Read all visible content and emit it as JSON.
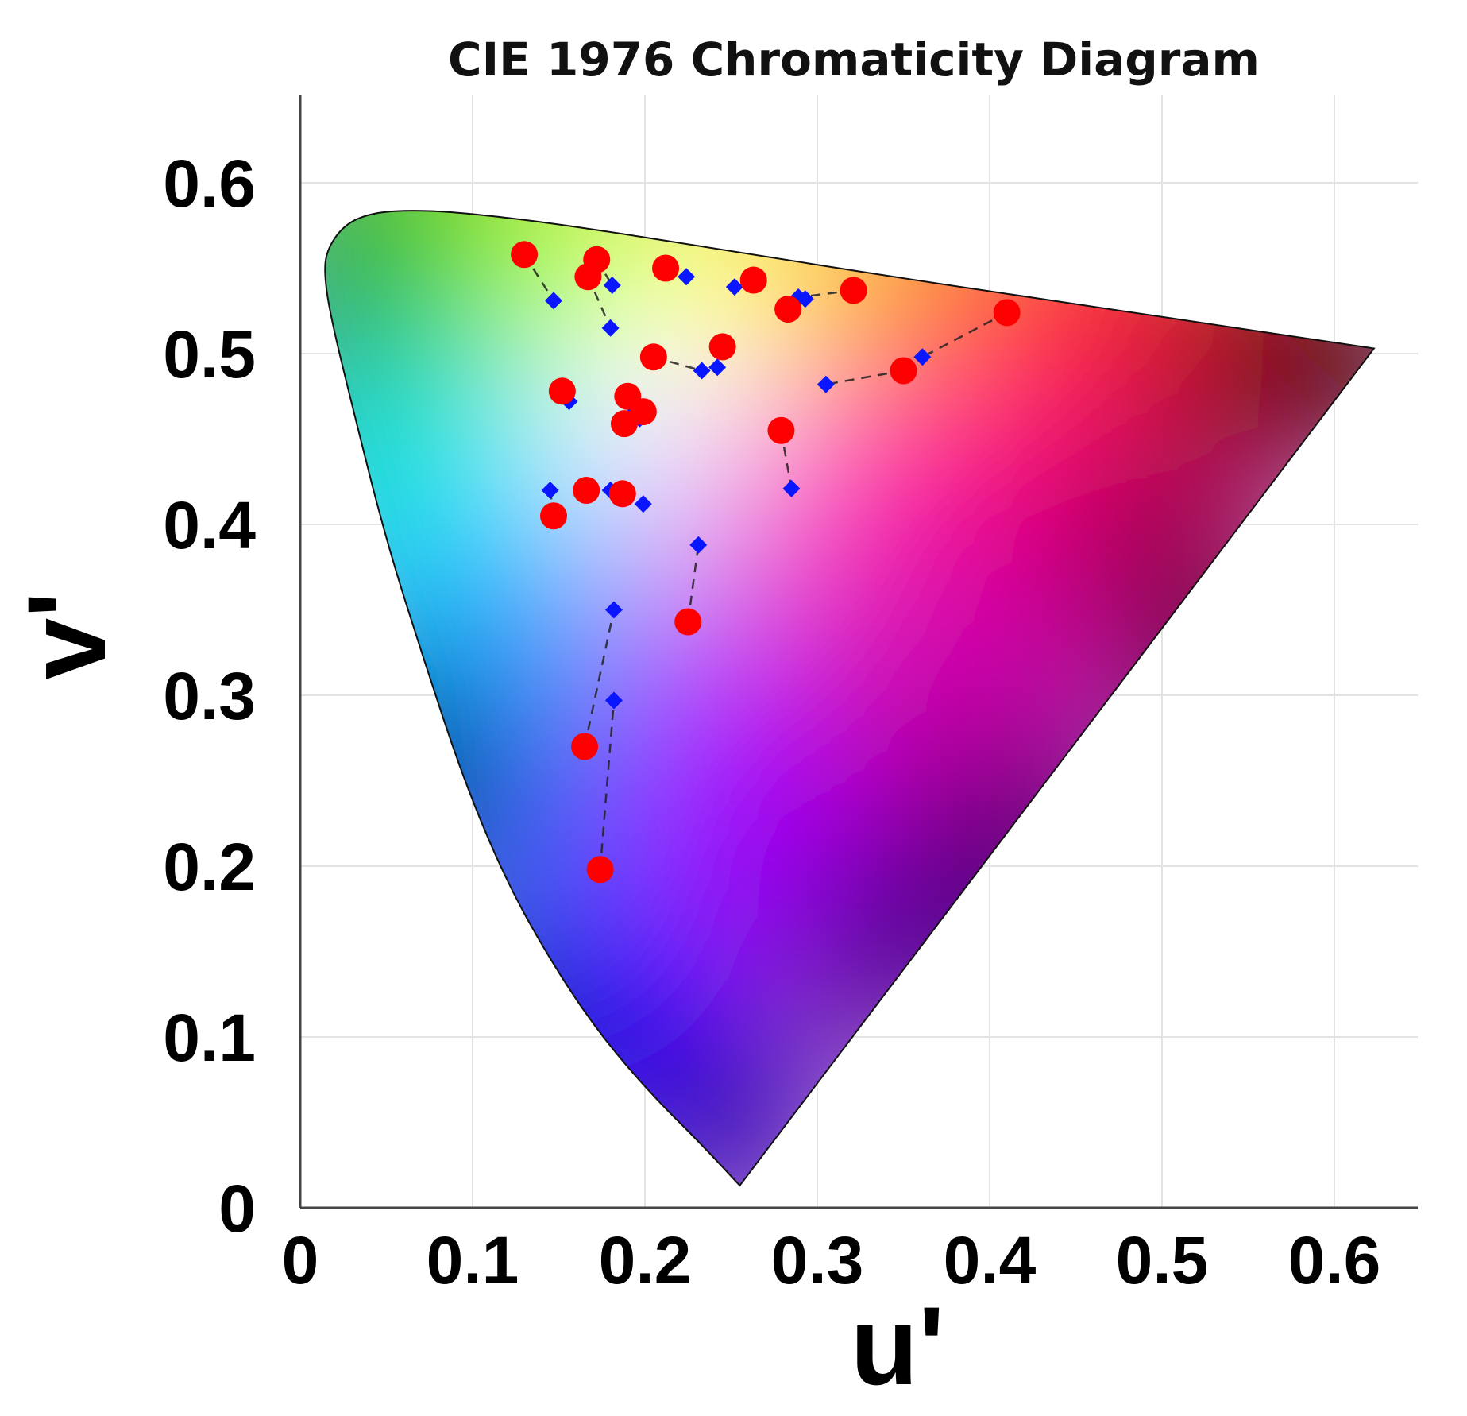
{
  "chart_data": {
    "type": "scatter",
    "title": "CIE 1976 Chromaticity Diagram",
    "xlabel": "u'",
    "ylabel": "v'",
    "xlim": [
      0,
      0.65
    ],
    "ylim": [
      0,
      0.65
    ],
    "xticks": [
      "0",
      "0.1",
      "0.2",
      "0.3",
      "0.4",
      "0.5",
      "0.6"
    ],
    "yticks": [
      "0",
      "0.1",
      "0.2",
      "0.3",
      "0.4",
      "0.5",
      "0.6"
    ],
    "grid": true,
    "legend": "none",
    "colors": {
      "red_marker": "#ff0000",
      "blue_marker": "#0a16ff",
      "connector": "#222222"
    },
    "locus": [
      [
        0.255,
        0.013
      ],
      [
        0.235,
        0.035
      ],
      [
        0.205,
        0.065
      ],
      [
        0.175,
        0.1
      ],
      [
        0.148,
        0.14
      ],
      [
        0.12,
        0.19
      ],
      [
        0.095,
        0.25
      ],
      [
        0.072,
        0.32
      ],
      [
        0.05,
        0.39
      ],
      [
        0.03,
        0.47
      ],
      [
        0.018,
        0.52
      ],
      [
        0.014,
        0.545
      ],
      [
        0.015,
        0.56
      ],
      [
        0.025,
        0.575
      ],
      [
        0.04,
        0.582
      ],
      [
        0.06,
        0.584
      ],
      [
        0.09,
        0.583
      ],
      [
        0.15,
        0.576
      ],
      [
        0.25,
        0.56
      ],
      [
        0.35,
        0.544
      ],
      [
        0.45,
        0.529
      ],
      [
        0.55,
        0.514
      ],
      [
        0.623,
        0.503
      ]
    ],
    "pairs": [
      {
        "red": [
          0.13,
          0.558
        ],
        "blue": [
          0.147,
          0.531
        ]
      },
      {
        "red": [
          0.172,
          0.555
        ],
        "blue": [
          0.181,
          0.54
        ]
      },
      {
        "red": [
          0.167,
          0.545
        ],
        "blue": [
          0.18,
          0.515
        ]
      },
      {
        "red": [
          0.212,
          0.55
        ],
        "blue": [
          0.224,
          0.545
        ]
      },
      {
        "red": [
          0.263,
          0.543
        ],
        "blue": [
          0.252,
          0.539
        ]
      },
      {
        "red": [
          0.321,
          0.537
        ],
        "blue": [
          0.289,
          0.533
        ]
      },
      {
        "red": [
          0.283,
          0.526
        ],
        "blue": [
          0.293,
          0.532
        ]
      },
      {
        "red": [
          0.41,
          0.524
        ],
        "blue": [
          0.361,
          0.498
        ]
      },
      {
        "red": [
          0.35,
          0.49
        ],
        "blue": [
          0.305,
          0.482
        ]
      },
      {
        "red": [
          0.245,
          0.504
        ],
        "blue": [
          0.242,
          0.492
        ]
      },
      {
        "red": [
          0.205,
          0.498
        ],
        "blue": [
          0.233,
          0.49
        ]
      },
      {
        "red": [
          0.152,
          0.478
        ],
        "blue": [
          0.156,
          0.472
        ]
      },
      {
        "red": [
          0.19,
          0.475
        ],
        "blue": [
          0.193,
          0.465
        ]
      },
      {
        "red": [
          0.199,
          0.466
        ],
        "blue": [
          0.192,
          0.472
        ]
      },
      {
        "red": [
          0.188,
          0.459
        ],
        "blue": [
          0.197,
          0.462
        ]
      },
      {
        "red": [
          0.279,
          0.455
        ],
        "blue": [
          0.285,
          0.421
        ]
      },
      {
        "red": [
          0.166,
          0.42
        ],
        "blue": [
          0.18,
          0.42
        ]
      },
      {
        "red": [
          0.187,
          0.418
        ],
        "blue": [
          0.199,
          0.412
        ]
      },
      {
        "red": [
          0.147,
          0.405
        ],
        "blue": [
          0.145,
          0.42
        ]
      },
      {
        "red": [
          0.225,
          0.343
        ],
        "blue": [
          0.231,
          0.388
        ]
      },
      {
        "red": [
          0.165,
          0.27
        ],
        "blue": [
          0.182,
          0.35
        ]
      },
      {
        "red": [
          0.174,
          0.198
        ],
        "blue": [
          0.182,
          0.297
        ]
      }
    ]
  }
}
